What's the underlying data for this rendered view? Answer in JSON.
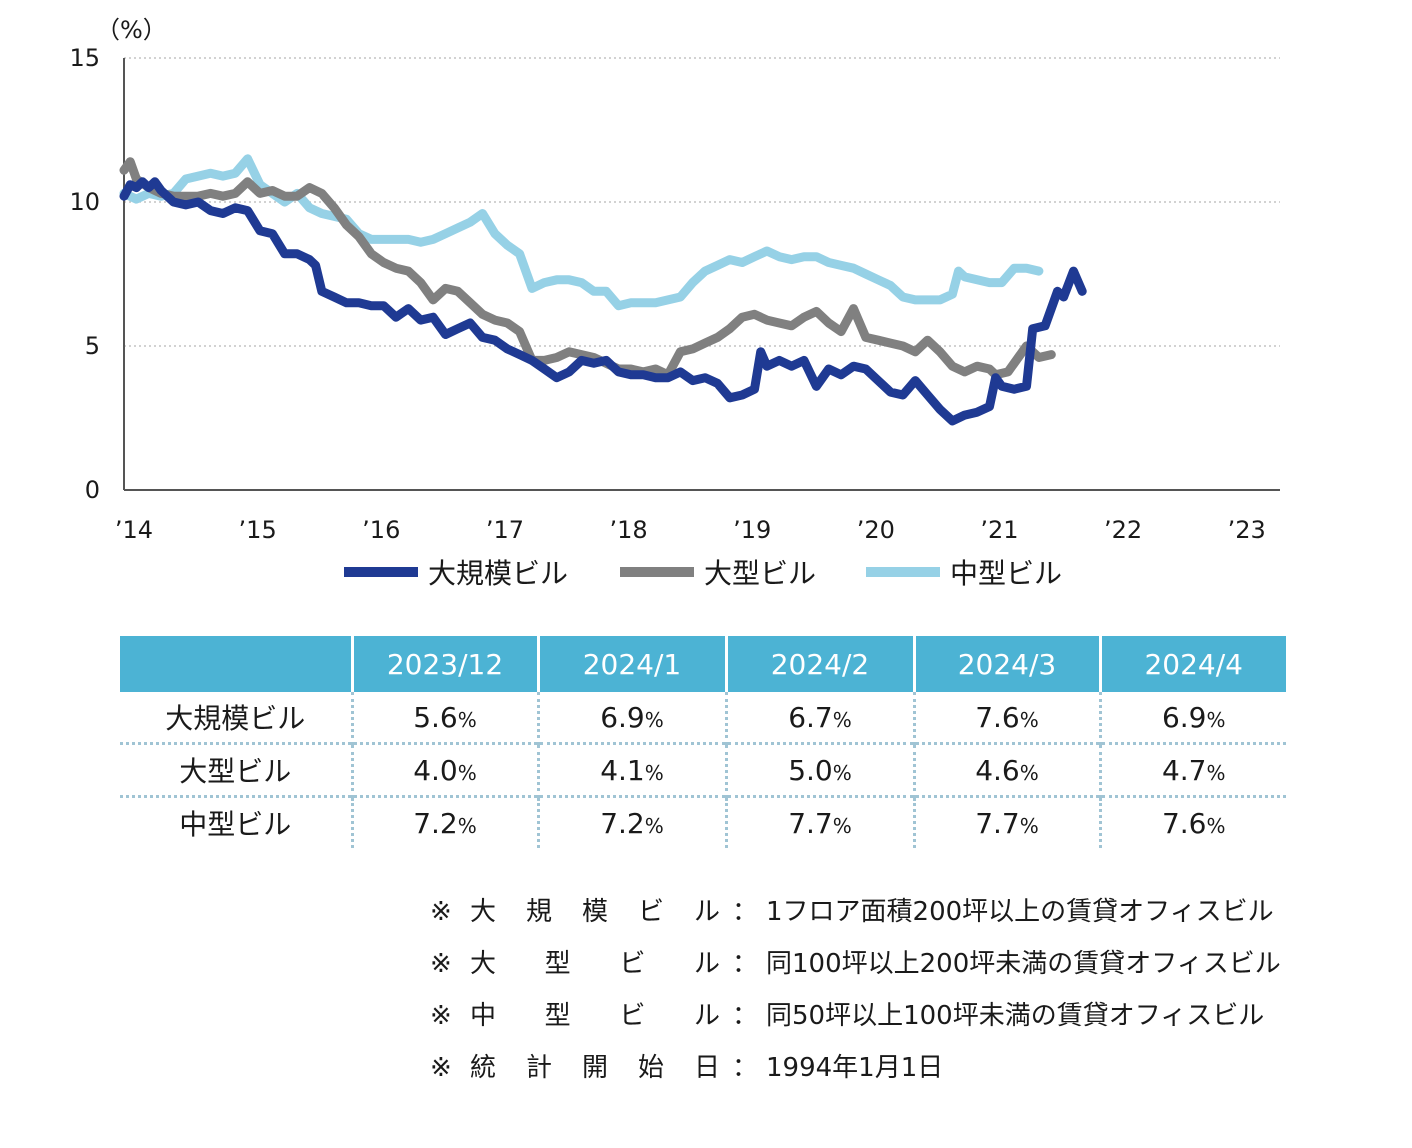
{
  "chart_data": {
    "type": "line",
    "unit_label": "（%）",
    "ylim": [
      0,
      15
    ],
    "yticks": [
      0,
      5,
      10,
      15
    ],
    "xlim": [
      2014,
      2023.35
    ],
    "xticks": [
      {
        "value": 2014,
        "label": "’14"
      },
      {
        "value": 2015,
        "label": "’15"
      },
      {
        "value": 2016,
        "label": "’16"
      },
      {
        "value": 2017,
        "label": "’17"
      },
      {
        "value": 2018,
        "label": "’18"
      },
      {
        "value": 2019,
        "label": "’19"
      },
      {
        "value": 2020,
        "label": "’20"
      },
      {
        "value": 2021,
        "label": "’21"
      },
      {
        "value": 2022,
        "label": "’22"
      },
      {
        "value": 2023,
        "label": "’23"
      }
    ],
    "grid": "horizontal-dotted",
    "legend_position": "bottom",
    "series": [
      {
        "name": "大規模ビル",
        "color": "#1f3a93",
        "points": [
          [
            2014.0,
            10.2
          ],
          [
            2014.05,
            10.6
          ],
          [
            2014.1,
            10.5
          ],
          [
            2014.15,
            10.7
          ],
          [
            2014.2,
            10.5
          ],
          [
            2014.25,
            10.7
          ],
          [
            2014.3,
            10.4
          ],
          [
            2014.4,
            10.0
          ],
          [
            2014.5,
            9.9
          ],
          [
            2014.6,
            10.0
          ],
          [
            2014.7,
            9.7
          ],
          [
            2014.8,
            9.6
          ],
          [
            2014.9,
            9.8
          ],
          [
            2015.0,
            9.7
          ],
          [
            2015.1,
            9.0
          ],
          [
            2015.2,
            8.9
          ],
          [
            2015.3,
            8.2
          ],
          [
            2015.4,
            8.2
          ],
          [
            2015.5,
            8.0
          ],
          [
            2015.55,
            7.8
          ],
          [
            2015.6,
            6.9
          ],
          [
            2015.7,
            6.7
          ],
          [
            2015.8,
            6.5
          ],
          [
            2015.9,
            6.5
          ],
          [
            2016.0,
            6.4
          ],
          [
            2016.1,
            6.4
          ],
          [
            2016.2,
            6.0
          ],
          [
            2016.3,
            6.3
          ],
          [
            2016.4,
            5.9
          ],
          [
            2016.5,
            6.0
          ],
          [
            2016.6,
            5.4
          ],
          [
            2016.7,
            5.6
          ],
          [
            2016.8,
            5.8
          ],
          [
            2016.9,
            5.3
          ],
          [
            2017.0,
            5.2
          ],
          [
            2017.1,
            4.9
          ],
          [
            2017.2,
            4.7
          ],
          [
            2017.3,
            4.5
          ],
          [
            2017.4,
            4.2
          ],
          [
            2017.5,
            3.9
          ],
          [
            2017.6,
            4.1
          ],
          [
            2017.7,
            4.5
          ],
          [
            2017.8,
            4.4
          ],
          [
            2017.9,
            4.5
          ],
          [
            2018.0,
            4.1
          ],
          [
            2018.1,
            4.0
          ],
          [
            2018.2,
            4.0
          ],
          [
            2018.3,
            3.9
          ],
          [
            2018.4,
            3.9
          ],
          [
            2018.5,
            4.1
          ],
          [
            2018.6,
            3.8
          ],
          [
            2018.7,
            3.9
          ],
          [
            2018.8,
            3.7
          ],
          [
            2018.9,
            3.2
          ],
          [
            2019.0,
            3.3
          ],
          [
            2019.1,
            3.5
          ],
          [
            2019.15,
            4.8
          ],
          [
            2019.2,
            4.3
          ],
          [
            2019.3,
            4.5
          ],
          [
            2019.4,
            4.3
          ],
          [
            2019.5,
            4.5
          ],
          [
            2019.6,
            3.6
          ],
          [
            2019.7,
            4.2
          ],
          [
            2019.8,
            4.0
          ],
          [
            2019.9,
            4.3
          ],
          [
            2020.0,
            4.2
          ],
          [
            2020.1,
            3.8
          ],
          [
            2020.2,
            3.4
          ],
          [
            2020.3,
            3.3
          ],
          [
            2020.4,
            3.8
          ],
          [
            2020.5,
            3.3
          ],
          [
            2020.6,
            2.8
          ],
          [
            2020.7,
            2.4
          ],
          [
            2020.8,
            2.6
          ],
          [
            2020.9,
            2.7
          ],
          [
            2021.0,
            2.9
          ],
          [
            2021.05,
            3.9
          ],
          [
            2021.1,
            3.6
          ],
          [
            2021.2,
            3.5
          ],
          [
            2021.3,
            3.6
          ],
          [
            2021.35,
            5.6
          ],
          [
            2021.45,
            5.7
          ],
          [
            2021.55,
            6.9
          ],
          [
            2021.6,
            6.7
          ],
          [
            2021.68,
            7.6
          ],
          [
            2021.75,
            6.9
          ]
        ]
      },
      {
        "name": "大型ビル",
        "color": "#808080",
        "points": [
          [
            2014.0,
            11.1
          ],
          [
            2014.05,
            11.4
          ],
          [
            2014.1,
            10.8
          ],
          [
            2014.2,
            10.5
          ],
          [
            2014.3,
            10.3
          ],
          [
            2014.4,
            10.2
          ],
          [
            2014.5,
            10.2
          ],
          [
            2014.6,
            10.2
          ],
          [
            2014.7,
            10.3
          ],
          [
            2014.8,
            10.2
          ],
          [
            2014.9,
            10.3
          ],
          [
            2015.0,
            10.7
          ],
          [
            2015.1,
            10.3
          ],
          [
            2015.2,
            10.4
          ],
          [
            2015.3,
            10.2
          ],
          [
            2015.4,
            10.2
          ],
          [
            2015.5,
            10.5
          ],
          [
            2015.6,
            10.3
          ],
          [
            2015.7,
            9.8
          ],
          [
            2015.8,
            9.2
          ],
          [
            2015.9,
            8.8
          ],
          [
            2016.0,
            8.2
          ],
          [
            2016.1,
            7.9
          ],
          [
            2016.2,
            7.7
          ],
          [
            2016.3,
            7.6
          ],
          [
            2016.4,
            7.2
          ],
          [
            2016.5,
            6.6
          ],
          [
            2016.6,
            7.0
          ],
          [
            2016.7,
            6.9
          ],
          [
            2016.8,
            6.5
          ],
          [
            2016.9,
            6.1
          ],
          [
            2017.0,
            5.9
          ],
          [
            2017.1,
            5.8
          ],
          [
            2017.2,
            5.5
          ],
          [
            2017.3,
            4.5
          ],
          [
            2017.4,
            4.5
          ],
          [
            2017.5,
            4.6
          ],
          [
            2017.6,
            4.8
          ],
          [
            2017.7,
            4.7
          ],
          [
            2017.8,
            4.6
          ],
          [
            2017.9,
            4.4
          ],
          [
            2018.0,
            4.2
          ],
          [
            2018.1,
            4.2
          ],
          [
            2018.2,
            4.1
          ],
          [
            2018.3,
            4.2
          ],
          [
            2018.4,
            4.0
          ],
          [
            2018.5,
            4.8
          ],
          [
            2018.6,
            4.9
          ],
          [
            2018.7,
            5.1
          ],
          [
            2018.8,
            5.3
          ],
          [
            2018.9,
            5.6
          ],
          [
            2019.0,
            6.0
          ],
          [
            2019.1,
            6.1
          ],
          [
            2019.2,
            5.9
          ],
          [
            2019.3,
            5.8
          ],
          [
            2019.4,
            5.7
          ],
          [
            2019.5,
            6.0
          ],
          [
            2019.6,
            6.2
          ],
          [
            2019.7,
            5.8
          ],
          [
            2019.8,
            5.5
          ],
          [
            2019.9,
            6.3
          ],
          [
            2020.0,
            5.3
          ],
          [
            2020.1,
            5.2
          ],
          [
            2020.2,
            5.1
          ],
          [
            2020.3,
            5.0
          ],
          [
            2020.4,
            4.8
          ],
          [
            2020.5,
            5.2
          ],
          [
            2020.6,
            4.8
          ],
          [
            2020.7,
            4.3
          ],
          [
            2020.8,
            4.1
          ],
          [
            2020.9,
            4.3
          ],
          [
            2021.0,
            4.2
          ],
          [
            2021.05,
            4.0
          ],
          [
            2021.15,
            4.1
          ],
          [
            2021.3,
            5.0
          ],
          [
            2021.4,
            4.6
          ],
          [
            2021.5,
            4.7
          ]
        ]
      },
      {
        "name": "中型ビル",
        "color": "#96d1e6",
        "points": [
          [
            2014.0,
            10.3
          ],
          [
            2014.1,
            10.1
          ],
          [
            2014.2,
            10.3
          ],
          [
            2014.3,
            10.2
          ],
          [
            2014.4,
            10.3
          ],
          [
            2014.5,
            10.8
          ],
          [
            2014.6,
            10.9
          ],
          [
            2014.7,
            11.0
          ],
          [
            2014.8,
            10.9
          ],
          [
            2014.9,
            11.0
          ],
          [
            2015.0,
            11.5
          ],
          [
            2015.1,
            10.6
          ],
          [
            2015.2,
            10.3
          ],
          [
            2015.3,
            10.0
          ],
          [
            2015.4,
            10.3
          ],
          [
            2015.5,
            9.8
          ],
          [
            2015.6,
            9.6
          ],
          [
            2015.7,
            9.5
          ],
          [
            2015.8,
            9.4
          ],
          [
            2015.9,
            8.9
          ],
          [
            2016.0,
            8.7
          ],
          [
            2016.1,
            8.7
          ],
          [
            2016.2,
            8.7
          ],
          [
            2016.3,
            8.7
          ],
          [
            2016.4,
            8.6
          ],
          [
            2016.5,
            8.7
          ],
          [
            2016.6,
            8.9
          ],
          [
            2016.7,
            9.1
          ],
          [
            2016.8,
            9.3
          ],
          [
            2016.9,
            9.6
          ],
          [
            2017.0,
            8.9
          ],
          [
            2017.1,
            8.5
          ],
          [
            2017.2,
            8.2
          ],
          [
            2017.3,
            7.0
          ],
          [
            2017.4,
            7.2
          ],
          [
            2017.5,
            7.3
          ],
          [
            2017.6,
            7.3
          ],
          [
            2017.7,
            7.2
          ],
          [
            2017.8,
            6.9
          ],
          [
            2017.9,
            6.9
          ],
          [
            2018.0,
            6.4
          ],
          [
            2018.1,
            6.5
          ],
          [
            2018.2,
            6.5
          ],
          [
            2018.3,
            6.5
          ],
          [
            2018.4,
            6.6
          ],
          [
            2018.5,
            6.7
          ],
          [
            2018.6,
            7.2
          ],
          [
            2018.7,
            7.6
          ],
          [
            2018.8,
            7.8
          ],
          [
            2018.9,
            8.0
          ],
          [
            2019.0,
            7.9
          ],
          [
            2019.1,
            8.1
          ],
          [
            2019.2,
            8.3
          ],
          [
            2019.3,
            8.1
          ],
          [
            2019.4,
            8.0
          ],
          [
            2019.5,
            8.1
          ],
          [
            2019.6,
            8.1
          ],
          [
            2019.7,
            7.9
          ],
          [
            2019.8,
            7.8
          ],
          [
            2019.9,
            7.7
          ],
          [
            2020.0,
            7.5
          ],
          [
            2020.1,
            7.3
          ],
          [
            2020.2,
            7.1
          ],
          [
            2020.3,
            6.7
          ],
          [
            2020.4,
            6.6
          ],
          [
            2020.5,
            6.6
          ],
          [
            2020.6,
            6.6
          ],
          [
            2020.7,
            6.8
          ],
          [
            2020.75,
            7.6
          ],
          [
            2020.8,
            7.4
          ],
          [
            2020.9,
            7.3
          ],
          [
            2021.0,
            7.2
          ],
          [
            2021.1,
            7.2
          ],
          [
            2021.2,
            7.7
          ],
          [
            2021.3,
            7.7
          ],
          [
            2021.4,
            7.6
          ]
        ]
      }
    ]
  },
  "table": {
    "headers": [
      "",
      "2023/12",
      "2024/1",
      "2024/2",
      "2024/3",
      "2024/4"
    ],
    "rows": [
      {
        "label": "大規模ビル",
        "values": [
          "5.6",
          "6.9",
          "6.7",
          "7.6",
          "6.9"
        ]
      },
      {
        "label": "大型ビル",
        "values": [
          "4.0",
          "4.1",
          "5.0",
          "4.6",
          "4.7"
        ]
      },
      {
        "label": "中型ビル",
        "values": [
          "7.2",
          "7.2",
          "7.7",
          "7.7",
          "7.6"
        ]
      }
    ],
    "unit": "%"
  },
  "notes": [
    {
      "mark": "※",
      "term": [
        "大",
        "規",
        "模",
        "ビ",
        "ル"
      ],
      "colon": "：",
      "desc": "1フロア面積200坪以上の賃貸オフィスビル"
    },
    {
      "mark": "※",
      "term": [
        "大",
        "型",
        "ビ",
        "ル"
      ],
      "colon": "：",
      "desc": "同100坪以上200坪未満の賃貸オフィスビル"
    },
    {
      "mark": "※",
      "term": [
        "中",
        "型",
        "ビ",
        "ル"
      ],
      "colon": "：",
      "desc": "同50坪以上100坪未満の賃貸オフィスビル"
    },
    {
      "mark": "※",
      "term": [
        "統",
        "計",
        "開",
        "始",
        "日"
      ],
      "colon": "：",
      "desc": "1994年1月1日"
    }
  ]
}
